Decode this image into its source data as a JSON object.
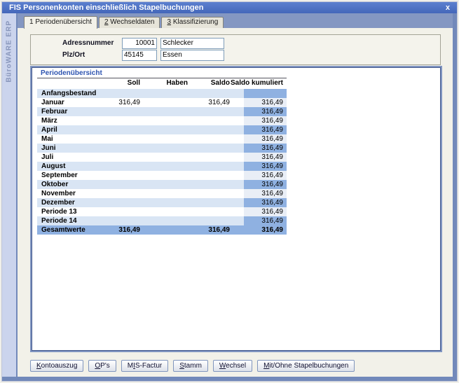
{
  "window": {
    "title": "FIS Personenkonten einschließlich Stapelbuchungen",
    "close_icon": "x",
    "sidebar_brand": "BüroWARE ERP"
  },
  "tabs": [
    {
      "label": "1 Periodenübersicht",
      "underline_index": -1,
      "active": true
    },
    {
      "label": "2 Wechseldaten",
      "underline_index": 0,
      "active": false
    },
    {
      "label": "3 Klassifizierung",
      "underline_index": 0,
      "active": false
    }
  ],
  "form": {
    "fields": [
      {
        "label": "Adressnummer",
        "code_value": "10001",
        "text_value": "Schlecker"
      },
      {
        "label": "Plz/Ort",
        "code_value": "45145",
        "text_value": "Essen"
      }
    ]
  },
  "period_table": {
    "title": "Periodenübersicht",
    "columns": [
      "Soll",
      "Haben",
      "Saldo",
      "Saldo kumuliert"
    ],
    "rows": [
      {
        "label": "Anfangsbestand",
        "soll": "",
        "haben": "",
        "saldo": "",
        "kumuliert": "",
        "shade": "light"
      },
      {
        "label": "Januar",
        "soll": "316,49",
        "haben": "",
        "saldo": "316,49",
        "kumuliert": "316,49",
        "shade": "white"
      },
      {
        "label": "Februar",
        "soll": "",
        "haben": "",
        "saldo": "",
        "kumuliert": "316,49",
        "shade": "light"
      },
      {
        "label": "März",
        "soll": "",
        "haben": "",
        "saldo": "",
        "kumuliert": "316,49",
        "shade": "white"
      },
      {
        "label": "April",
        "soll": "",
        "haben": "",
        "saldo": "",
        "kumuliert": "316,49",
        "shade": "light"
      },
      {
        "label": "Mai",
        "soll": "",
        "haben": "",
        "saldo": "",
        "kumuliert": "316,49",
        "shade": "white"
      },
      {
        "label": "Juni",
        "soll": "",
        "haben": "",
        "saldo": "",
        "kumuliert": "316,49",
        "shade": "light"
      },
      {
        "label": "Juli",
        "soll": "",
        "haben": "",
        "saldo": "",
        "kumuliert": "316,49",
        "shade": "white"
      },
      {
        "label": "August",
        "soll": "",
        "haben": "",
        "saldo": "",
        "kumuliert": "316,49",
        "shade": "light"
      },
      {
        "label": "September",
        "soll": "",
        "haben": "",
        "saldo": "",
        "kumuliert": "316,49",
        "shade": "white"
      },
      {
        "label": "Oktober",
        "soll": "",
        "haben": "",
        "saldo": "",
        "kumuliert": "316,49",
        "shade": "light"
      },
      {
        "label": "November",
        "soll": "",
        "haben": "",
        "saldo": "",
        "kumuliert": "316,49",
        "shade": "white"
      },
      {
        "label": "Dezember",
        "soll": "",
        "haben": "",
        "saldo": "",
        "kumuliert": "316,49",
        "shade": "light"
      },
      {
        "label": "Periode 13",
        "soll": "",
        "haben": "",
        "saldo": "",
        "kumuliert": "316,49",
        "shade": "white"
      },
      {
        "label": "Periode 14",
        "soll": "",
        "haben": "",
        "saldo": "",
        "kumuliert": "316,49",
        "shade": "light"
      },
      {
        "label": "Gesamtwerte",
        "soll": "316,49",
        "haben": "",
        "saldo": "316,49",
        "kumuliert": "316,49",
        "shade": "total"
      }
    ]
  },
  "action_buttons": [
    {
      "label": "Kontoauszug",
      "underline_index": 0
    },
    {
      "label": "OP's",
      "underline_index": 0
    },
    {
      "label": "MIS-Factur",
      "underline_index": 1
    },
    {
      "label": "Stamm",
      "underline_index": 0
    },
    {
      "label": "Wechsel",
      "underline_index": 0
    },
    {
      "label": "Mit/Ohne Stapelbuchungen",
      "underline_index": 0
    }
  ],
  "colors": {
    "titlebar_blue": "#4a6fc4",
    "frame_blue": "#7289ba",
    "tab_band": "#8497c2",
    "sidebar_strip": "#cbd4ed",
    "page_cream": "#f2f1e9",
    "row_light_blue": "#d9e5f4",
    "kumuliert_strong": "#8fb1e1",
    "kumuliert_faint": "#e9eef6",
    "panel_title_blue": "#2e54b0"
  }
}
